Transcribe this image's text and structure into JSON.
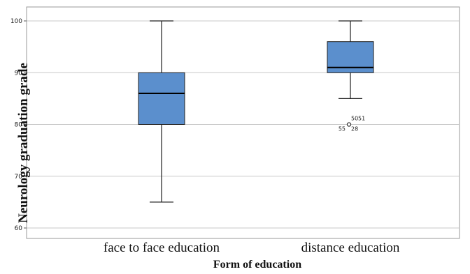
{
  "chart_data": {
    "type": "box",
    "title": "",
    "xlabel": "Form of education",
    "ylabel": "Neurology graduation grade",
    "ylim": [
      58,
      102
    ],
    "yticks": [
      60,
      70,
      80,
      90,
      100
    ],
    "grid": true,
    "categories": [
      "face to face education",
      "distance education"
    ],
    "boxes": [
      {
        "category": "face to face education",
        "min": 65,
        "q1": 80,
        "median": 86,
        "q3": 90,
        "max": 100,
        "outliers": []
      },
      {
        "category": "distance education",
        "min": 85,
        "q1": 90,
        "median": 91,
        "q3": 96,
        "max": 100,
        "outliers": [
          {
            "value": 80,
            "labels": [
              "50",
              "51",
              "55",
              "28"
            ]
          }
        ]
      }
    ],
    "colors": {
      "box_fill": "#5b8fcd",
      "box_stroke": "#1f1f1f",
      "grid": "#c8c8c8",
      "frame": "#9a9a9a"
    }
  }
}
